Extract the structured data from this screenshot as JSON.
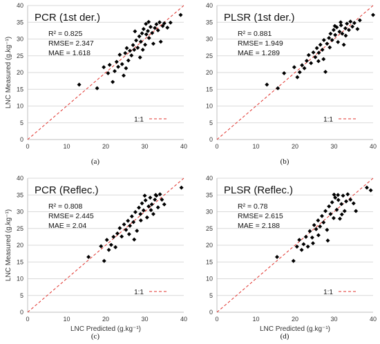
{
  "colors": {
    "points": "#000000",
    "one_to_one": "#e0312b",
    "grid": "#d9d9d9",
    "axis": "#bfbfbf"
  },
  "chart_data": [
    {
      "type": "scatter",
      "caption": "(a)",
      "title": "PCR (1st der.)",
      "stats": [
        "R² = 0.825",
        "RMSE= 2.347",
        "MAE = 1.618"
      ],
      "legend_label": "1:1",
      "legend_position": "bottom-right",
      "xlabel": "",
      "ylabel": "LNC Measured (g.kg⁻¹)",
      "xlim": [
        0,
        40
      ],
      "ylim": [
        0,
        40
      ],
      "x_ticks": [
        "0",
        "10",
        "20",
        "30",
        "40"
      ],
      "y_ticks": [
        "0",
        "5",
        "10",
        "15",
        "20",
        "25",
        "30",
        "35",
        "40"
      ],
      "grid": true,
      "series": [
        {
          "points": [
            [
              13.2,
              16.4
            ],
            [
              17.8,
              15.3
            ],
            [
              19.5,
              21.6
            ],
            [
              20.6,
              19.8
            ],
            [
              21.0,
              22.3
            ],
            [
              21.8,
              17.2
            ],
            [
              22.3,
              20.4
            ],
            [
              22.8,
              23.2
            ],
            [
              23.2,
              21.7
            ],
            [
              23.6,
              25.3
            ],
            [
              24.2,
              22.5
            ],
            [
              24.6,
              19.1
            ],
            [
              25.0,
              25.8
            ],
            [
              25.4,
              27.3
            ],
            [
              25.8,
              23.6
            ],
            [
              26.2,
              26.5
            ],
            [
              26.6,
              25.1
            ],
            [
              27.0,
              28.2
            ],
            [
              27.3,
              26.8
            ],
            [
              27.8,
              29.6
            ],
            [
              28.2,
              27.4
            ],
            [
              28.6,
              30.8
            ],
            [
              29.0,
              29.2
            ],
            [
              29.3,
              31.7
            ],
            [
              29.7,
              33.0
            ],
            [
              30.1,
              28.3
            ],
            [
              30.4,
              31.4
            ],
            [
              30.8,
              32.4
            ],
            [
              31.1,
              30.3
            ],
            [
              31.5,
              33.6
            ],
            [
              31.9,
              31.8
            ],
            [
              32.2,
              28.6
            ],
            [
              32.6,
              33.3
            ],
            [
              33.0,
              34.4
            ],
            [
              33.4,
              32.6
            ],
            [
              33.8,
              35.0
            ],
            [
              34.1,
              29.2
            ],
            [
              34.6,
              33.9
            ],
            [
              35.0,
              34.7
            ],
            [
              35.8,
              33.4
            ],
            [
              36.6,
              34.9
            ],
            [
              39.2,
              37.2
            ],
            [
              27.5,
              32.3
            ],
            [
              28.8,
              24.5
            ],
            [
              31.0,
              35.1
            ],
            [
              25.2,
              21.3
            ],
            [
              30.3,
              34.5
            ],
            [
              29.5,
              26.8
            ]
          ]
        }
      ]
    },
    {
      "type": "scatter",
      "caption": "(b)",
      "title": "PLSR (1st der.)",
      "stats": [
        "R² = 0.881",
        "RMSE= 1.949",
        "MAE = 1.289"
      ],
      "legend_label": "1:1",
      "legend_position": "bottom-right",
      "xlabel": "",
      "ylabel": "",
      "xlim": [
        0,
        40
      ],
      "ylim": [
        0,
        40
      ],
      "x_ticks": [
        "0",
        "10",
        "20",
        "30",
        "40"
      ],
      "y_ticks": [
        "0",
        "5",
        "10",
        "15",
        "20",
        "25",
        "30",
        "35",
        "40"
      ],
      "grid": true,
      "series": [
        {
          "points": [
            [
              12.8,
              16.4
            ],
            [
              15.6,
              15.3
            ],
            [
              17.2,
              19.8
            ],
            [
              19.8,
              21.6
            ],
            [
              20.6,
              18.6
            ],
            [
              21.2,
              20.1
            ],
            [
              21.8,
              22.2
            ],
            [
              22.4,
              21.3
            ],
            [
              23.0,
              23.5
            ],
            [
              23.5,
              25.2
            ],
            [
              24.1,
              22.8
            ],
            [
              24.7,
              26.0
            ],
            [
              25.2,
              24.6
            ],
            [
              25.6,
              27.3
            ],
            [
              26.1,
              25.9
            ],
            [
              26.5,
              28.3
            ],
            [
              27.0,
              26.8
            ],
            [
              27.4,
              29.7
            ],
            [
              27.8,
              20.2
            ],
            [
              28.2,
              28.6
            ],
            [
              28.7,
              30.3
            ],
            [
              29.1,
              31.6
            ],
            [
              29.5,
              29.7
            ],
            [
              29.9,
              32.7
            ],
            [
              30.3,
              31.2
            ],
            [
              30.7,
              33.5
            ],
            [
              31.0,
              29.1
            ],
            [
              31.4,
              32.2
            ],
            [
              31.8,
              34.1
            ],
            [
              32.1,
              31.6
            ],
            [
              32.5,
              28.3
            ],
            [
              32.9,
              33.2
            ],
            [
              33.3,
              34.6
            ],
            [
              33.8,
              32.7
            ],
            [
              34.2,
              35.2
            ],
            [
              34.7,
              33.7
            ],
            [
              35.2,
              34.8
            ],
            [
              36.0,
              33.0
            ],
            [
              36.6,
              35.6
            ],
            [
              40.0,
              37.2
            ],
            [
              26.0,
              23.4
            ],
            [
              30.2,
              33.9
            ],
            [
              31.7,
              35.0
            ],
            [
              28.9,
              27.5
            ],
            [
              33.0,
              31.0
            ],
            [
              27.3,
              24.0
            ]
          ]
        }
      ]
    },
    {
      "type": "scatter",
      "caption": "(c)",
      "title": "PCR (Reflec.)",
      "stats": [
        "R² = 0.808",
        "RMSE= 2.445",
        "MAE = 2.04"
      ],
      "legend_label": "1:1",
      "legend_position": "bottom-right",
      "xlabel": "LNC Predicted (g.kg⁻¹)",
      "ylabel": "LNC Measured (g.kg⁻¹)",
      "xlim": [
        0,
        40
      ],
      "ylim": [
        0,
        40
      ],
      "x_ticks": [
        "0",
        "10",
        "20",
        "30",
        "40"
      ],
      "y_ticks": [
        "0",
        "5",
        "10",
        "15",
        "20",
        "25",
        "30",
        "35",
        "40"
      ],
      "grid": true,
      "series": [
        {
          "points": [
            [
              15.6,
              16.5
            ],
            [
              18.8,
              19.7
            ],
            [
              19.6,
              15.3
            ],
            [
              20.3,
              21.6
            ],
            [
              20.8,
              18.6
            ],
            [
              21.4,
              20.1
            ],
            [
              22.0,
              22.5
            ],
            [
              22.5,
              19.4
            ],
            [
              23.0,
              23.5
            ],
            [
              23.6,
              25.1
            ],
            [
              24.1,
              22.6
            ],
            [
              24.7,
              26.2
            ],
            [
              25.2,
              24.6
            ],
            [
              25.7,
              27.3
            ],
            [
              26.2,
              25.8
            ],
            [
              26.7,
              28.6
            ],
            [
              27.1,
              26.9
            ],
            [
              27.6,
              29.9
            ],
            [
              28.0,
              24.3
            ],
            [
              28.5,
              31.2
            ],
            [
              28.9,
              29.3
            ],
            [
              29.3,
              32.5
            ],
            [
              29.7,
              30.4
            ],
            [
              30.2,
              33.4
            ],
            [
              30.6,
              28.3
            ],
            [
              31.0,
              31.6
            ],
            [
              31.4,
              34.2
            ],
            [
              31.8,
              32.2
            ],
            [
              32.2,
              29.3
            ],
            [
              32.6,
              33.6
            ],
            [
              33.0,
              34.8
            ],
            [
              33.4,
              31.3
            ],
            [
              33.9,
              35.2
            ],
            [
              34.4,
              33.6
            ],
            [
              35.0,
              32.2
            ],
            [
              39.4,
              37.2
            ],
            [
              26.0,
              23.3
            ],
            [
              30.0,
              34.8
            ],
            [
              32.8,
              35.0
            ],
            [
              29.0,
              27.4
            ],
            [
              27.3,
              21.7
            ],
            [
              31.6,
              30.5
            ]
          ]
        }
      ]
    },
    {
      "type": "scatter",
      "caption": "(d)",
      "title": "PLSR (Reflec.)",
      "stats": [
        "R² = 0.78",
        "RMSE= 2.615",
        "MAE = 2.188"
      ],
      "legend_label": "1:1",
      "legend_position": "bottom-right",
      "xlabel": "LNC Predicted (g.kg⁻¹)",
      "ylabel": "",
      "xlim": [
        0,
        40
      ],
      "ylim": [
        0,
        40
      ],
      "x_ticks": [
        "0",
        "10",
        "20",
        "30",
        "40"
      ],
      "y_ticks": [
        "0",
        "5",
        "10",
        "15",
        "20",
        "25",
        "30",
        "35",
        "40"
      ],
      "grid": true,
      "series": [
        {
          "points": [
            [
              15.4,
              16.5
            ],
            [
              19.6,
              15.3
            ],
            [
              20.5,
              19.6
            ],
            [
              21.1,
              21.6
            ],
            [
              21.7,
              18.6
            ],
            [
              22.2,
              20.3
            ],
            [
              22.8,
              22.5
            ],
            [
              23.3,
              19.6
            ],
            [
              23.8,
              24.2
            ],
            [
              24.4,
              22.3
            ],
            [
              24.9,
              26.0
            ],
            [
              25.4,
              24.8
            ],
            [
              25.9,
              27.4
            ],
            [
              26.4,
              25.6
            ],
            [
              26.9,
              28.7
            ],
            [
              27.3,
              26.8
            ],
            [
              27.8,
              30.2
            ],
            [
              28.2,
              24.6
            ],
            [
              28.7,
              31.6
            ],
            [
              29.1,
              29.3
            ],
            [
              29.5,
              32.8
            ],
            [
              29.9,
              28.1
            ],
            [
              30.3,
              34.2
            ],
            [
              30.7,
              30.6
            ],
            [
              31.1,
              33.5
            ],
            [
              31.5,
              27.9
            ],
            [
              31.9,
              32.3
            ],
            [
              32.3,
              34.8
            ],
            [
              32.7,
              30.2
            ],
            [
              33.1,
              33.1
            ],
            [
              33.5,
              35.2
            ],
            [
              34.2,
              33.6
            ],
            [
              35.0,
              32.5
            ],
            [
              35.6,
              30.2
            ],
            [
              38.4,
              37.2
            ],
            [
              39.4,
              36.4
            ],
            [
              26.0,
              23.0
            ],
            [
              30.0,
              35.1
            ],
            [
              28.4,
              21.4
            ],
            [
              32.0,
              29.2
            ],
            [
              31.0,
              35.0
            ],
            [
              24.6,
              20.6
            ]
          ]
        }
      ]
    }
  ]
}
